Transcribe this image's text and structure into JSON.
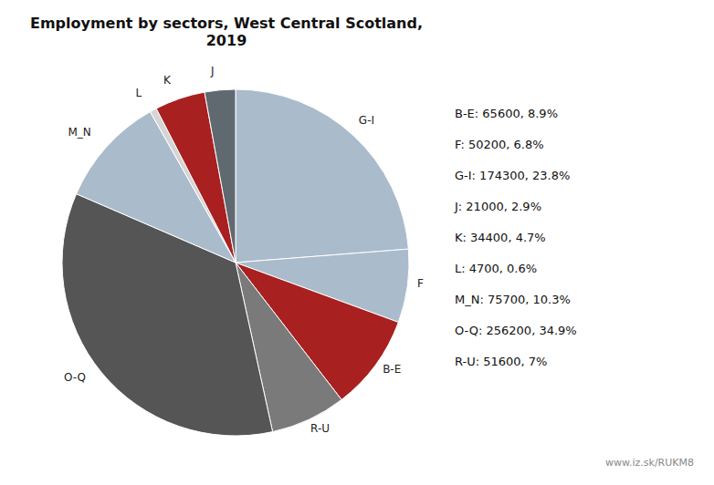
{
  "chart_data": {
    "type": "pie",
    "title": "Employment by sectors, West Central Scotland, 2019",
    "categories": [
      "G-I",
      "F",
      "B-E",
      "R-U",
      "O-Q",
      "M_N",
      "L",
      "K",
      "J"
    ],
    "values": [
      174300,
      50200,
      65600,
      51600,
      256200,
      75700,
      4700,
      34400,
      21000
    ],
    "colors": [
      "#aabbcc",
      "#aabbcc",
      "#a82020",
      "#7a7a7a",
      "#555555",
      "#aabbcc",
      "#d5d5d5",
      "#a82020",
      "#606870"
    ],
    "annotations": [
      "B-E: 65600, 8.9%",
      "F: 50200, 6.8%",
      "G-I: 174300, 23.8%",
      "J: 21000, 2.9%",
      "K: 34400, 4.7%",
      "L: 4700, 0.6%",
      "M_N: 75700, 10.3%",
      "O-Q: 256200, 34.9%",
      "R-U: 51600, 7%",
      "www.iz.sk/RUKM8"
    ]
  }
}
